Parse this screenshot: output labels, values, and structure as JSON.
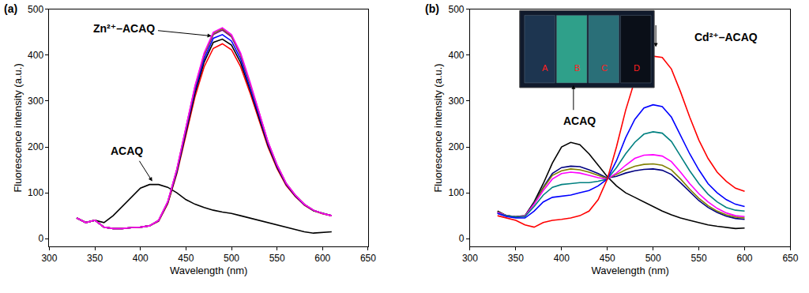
{
  "chart_data": [
    {
      "type": "line",
      "title": "(a)",
      "x_label": "Wavelength (nm)",
      "y_label": "Fluorescence intensity (a.u.)",
      "x": [
        330,
        340,
        350,
        360,
        370,
        380,
        390,
        400,
        410,
        420,
        430,
        440,
        450,
        460,
        470,
        480,
        490,
        500,
        510,
        520,
        530,
        540,
        550,
        560,
        570,
        580,
        590,
        600,
        610
      ],
      "series": [
        {
          "color": "#000000",
          "values": [
            45,
            35,
            40,
            35,
            50,
            70,
            90,
            110,
            118,
            118,
            112,
            100,
            85,
            75,
            68,
            62,
            58,
            55,
            50,
            45,
            40,
            35,
            30,
            25,
            20,
            15,
            12,
            13,
            15
          ]
        },
        {
          "color": "#ff0000",
          "values": [
            45,
            35,
            40,
            25,
            22,
            22,
            24,
            25,
            28,
            38,
            76,
            142,
            226,
            310,
            375,
            415,
            425,
            412,
            375,
            320,
            260,
            200,
            153,
            116,
            92,
            73,
            61,
            54,
            50
          ]
        },
        {
          "color": "#000000",
          "values": [
            45,
            35,
            40,
            25,
            22,
            22,
            24,
            25,
            28,
            39,
            78,
            145,
            232,
            318,
            385,
            428,
            435,
            422,
            384,
            327,
            265,
            204,
            156,
            118,
            93,
            74,
            61,
            55,
            50
          ]
        },
        {
          "color": "#0000ff",
          "values": [
            45,
            35,
            40,
            25,
            22,
            22,
            24,
            25,
            28,
            39,
            79,
            147,
            236,
            324,
            392,
            437,
            445,
            431,
            392,
            333,
            270,
            207,
            158,
            119,
            94,
            74,
            62,
            55,
            50
          ]
        },
        {
          "color": "#800080",
          "values": [
            45,
            35,
            40,
            25,
            22,
            22,
            24,
            25,
            28,
            40,
            80,
            150,
            240,
            330,
            400,
            445,
            455,
            440,
            400,
            340,
            275,
            210,
            160,
            120,
            95,
            75,
            62,
            55,
            50
          ]
        },
        {
          "color": "#808000",
          "values": [
            45,
            35,
            40,
            25,
            22,
            22,
            24,
            25,
            28,
            40,
            80,
            151,
            242,
            332,
            403,
            448,
            458,
            443,
            403,
            342,
            277,
            211,
            161,
            121,
            95,
            75,
            62,
            55,
            50
          ]
        },
        {
          "color": "#ff00ff",
          "values": [
            45,
            35,
            40,
            25,
            22,
            22,
            24,
            25,
            28,
            40,
            81,
            152,
            243,
            334,
            405,
            450,
            460,
            445,
            405,
            344,
            278,
            212,
            161,
            121,
            95,
            75,
            62,
            55,
            50
          ]
        }
      ],
      "annotations": [
        "ACAQ",
        "Zn²⁺–ACAQ"
      ],
      "xlim": [
        300,
        650
      ],
      "xticks": [
        300,
        350,
        400,
        450,
        500,
        550,
        600,
        650
      ],
      "ylim": [
        -17,
        500
      ],
      "yticks": [
        0,
        100,
        200,
        300,
        400,
        500
      ],
      "grid": false
    },
    {
      "type": "line",
      "title": "(b)",
      "x_label": "Wavelength (nm)",
      "y_label": "Fluorescence intensity (a.u.)",
      "x": [
        330,
        340,
        350,
        360,
        370,
        380,
        390,
        400,
        410,
        420,
        430,
        440,
        450,
        460,
        470,
        480,
        490,
        500,
        510,
        520,
        530,
        540,
        550,
        560,
        570,
        580,
        590,
        600
      ],
      "series": [
        {
          "color": "#000000",
          "values": [
            60,
            50,
            48,
            50,
            80,
            120,
            165,
            200,
            210,
            205,
            185,
            160,
            135,
            115,
            100,
            90,
            80,
            70,
            60,
            52,
            45,
            40,
            35,
            30,
            27,
            24,
            22,
            23
          ]
        },
        {
          "color": "#000080",
          "values": [
            58,
            50,
            47,
            49,
            78,
            112,
            142,
            155,
            158,
            157,
            150,
            142,
            132,
            136,
            143,
            148,
            151,
            152,
            149,
            140,
            122,
            102,
            83,
            68,
            57,
            49,
            44,
            42
          ]
        },
        {
          "color": "#808000",
          "values": [
            58,
            50,
            47,
            49,
            76,
            110,
            138,
            148,
            152,
            150,
            145,
            138,
            131,
            140,
            150,
            158,
            162,
            163,
            160,
            150,
            130,
            108,
            88,
            72,
            60,
            52,
            47,
            45
          ]
        },
        {
          "color": "#ff00ff",
          "values": [
            57,
            50,
            47,
            49,
            75,
            105,
            130,
            142,
            145,
            143,
            138,
            133,
            130,
            143,
            160,
            175,
            182,
            183,
            180,
            168,
            145,
            120,
            98,
            80,
            66,
            56,
            50,
            48
          ]
        },
        {
          "color": "#008080",
          "values": [
            55,
            50,
            47,
            48,
            70,
            95,
            112,
            118,
            120,
            122,
            122,
            125,
            130,
            155,
            185,
            210,
            228,
            233,
            230,
            212,
            180,
            148,
            120,
            97,
            80,
            68,
            62,
            60
          ]
        },
        {
          "color": "#0000ff",
          "values": [
            55,
            48,
            45,
            45,
            60,
            80,
            90,
            93,
            95,
            100,
            105,
            115,
            130,
            170,
            220,
            260,
            285,
            292,
            288,
            265,
            225,
            185,
            150,
            120,
            100,
            85,
            75,
            70
          ]
        },
        {
          "color": "#ff0000",
          "values": [
            50,
            45,
            40,
            30,
            25,
            35,
            40,
            42,
            45,
            50,
            60,
            85,
            130,
            200,
            280,
            345,
            385,
            398,
            395,
            370,
            320,
            265,
            215,
            175,
            145,
            125,
            110,
            103
          ]
        }
      ],
      "annotations": [
        "ACAQ",
        "Cd²⁺–ACAQ",
        "A",
        "B",
        "C",
        "D"
      ],
      "xlim": [
        300,
        650
      ],
      "xticks": [
        300,
        350,
        400,
        450,
        500,
        550,
        600,
        650
      ],
      "ylim": [
        -17,
        500
      ],
      "yticks": [
        0,
        100,
        200,
        300,
        400,
        500
      ],
      "grid": false
    }
  ]
}
